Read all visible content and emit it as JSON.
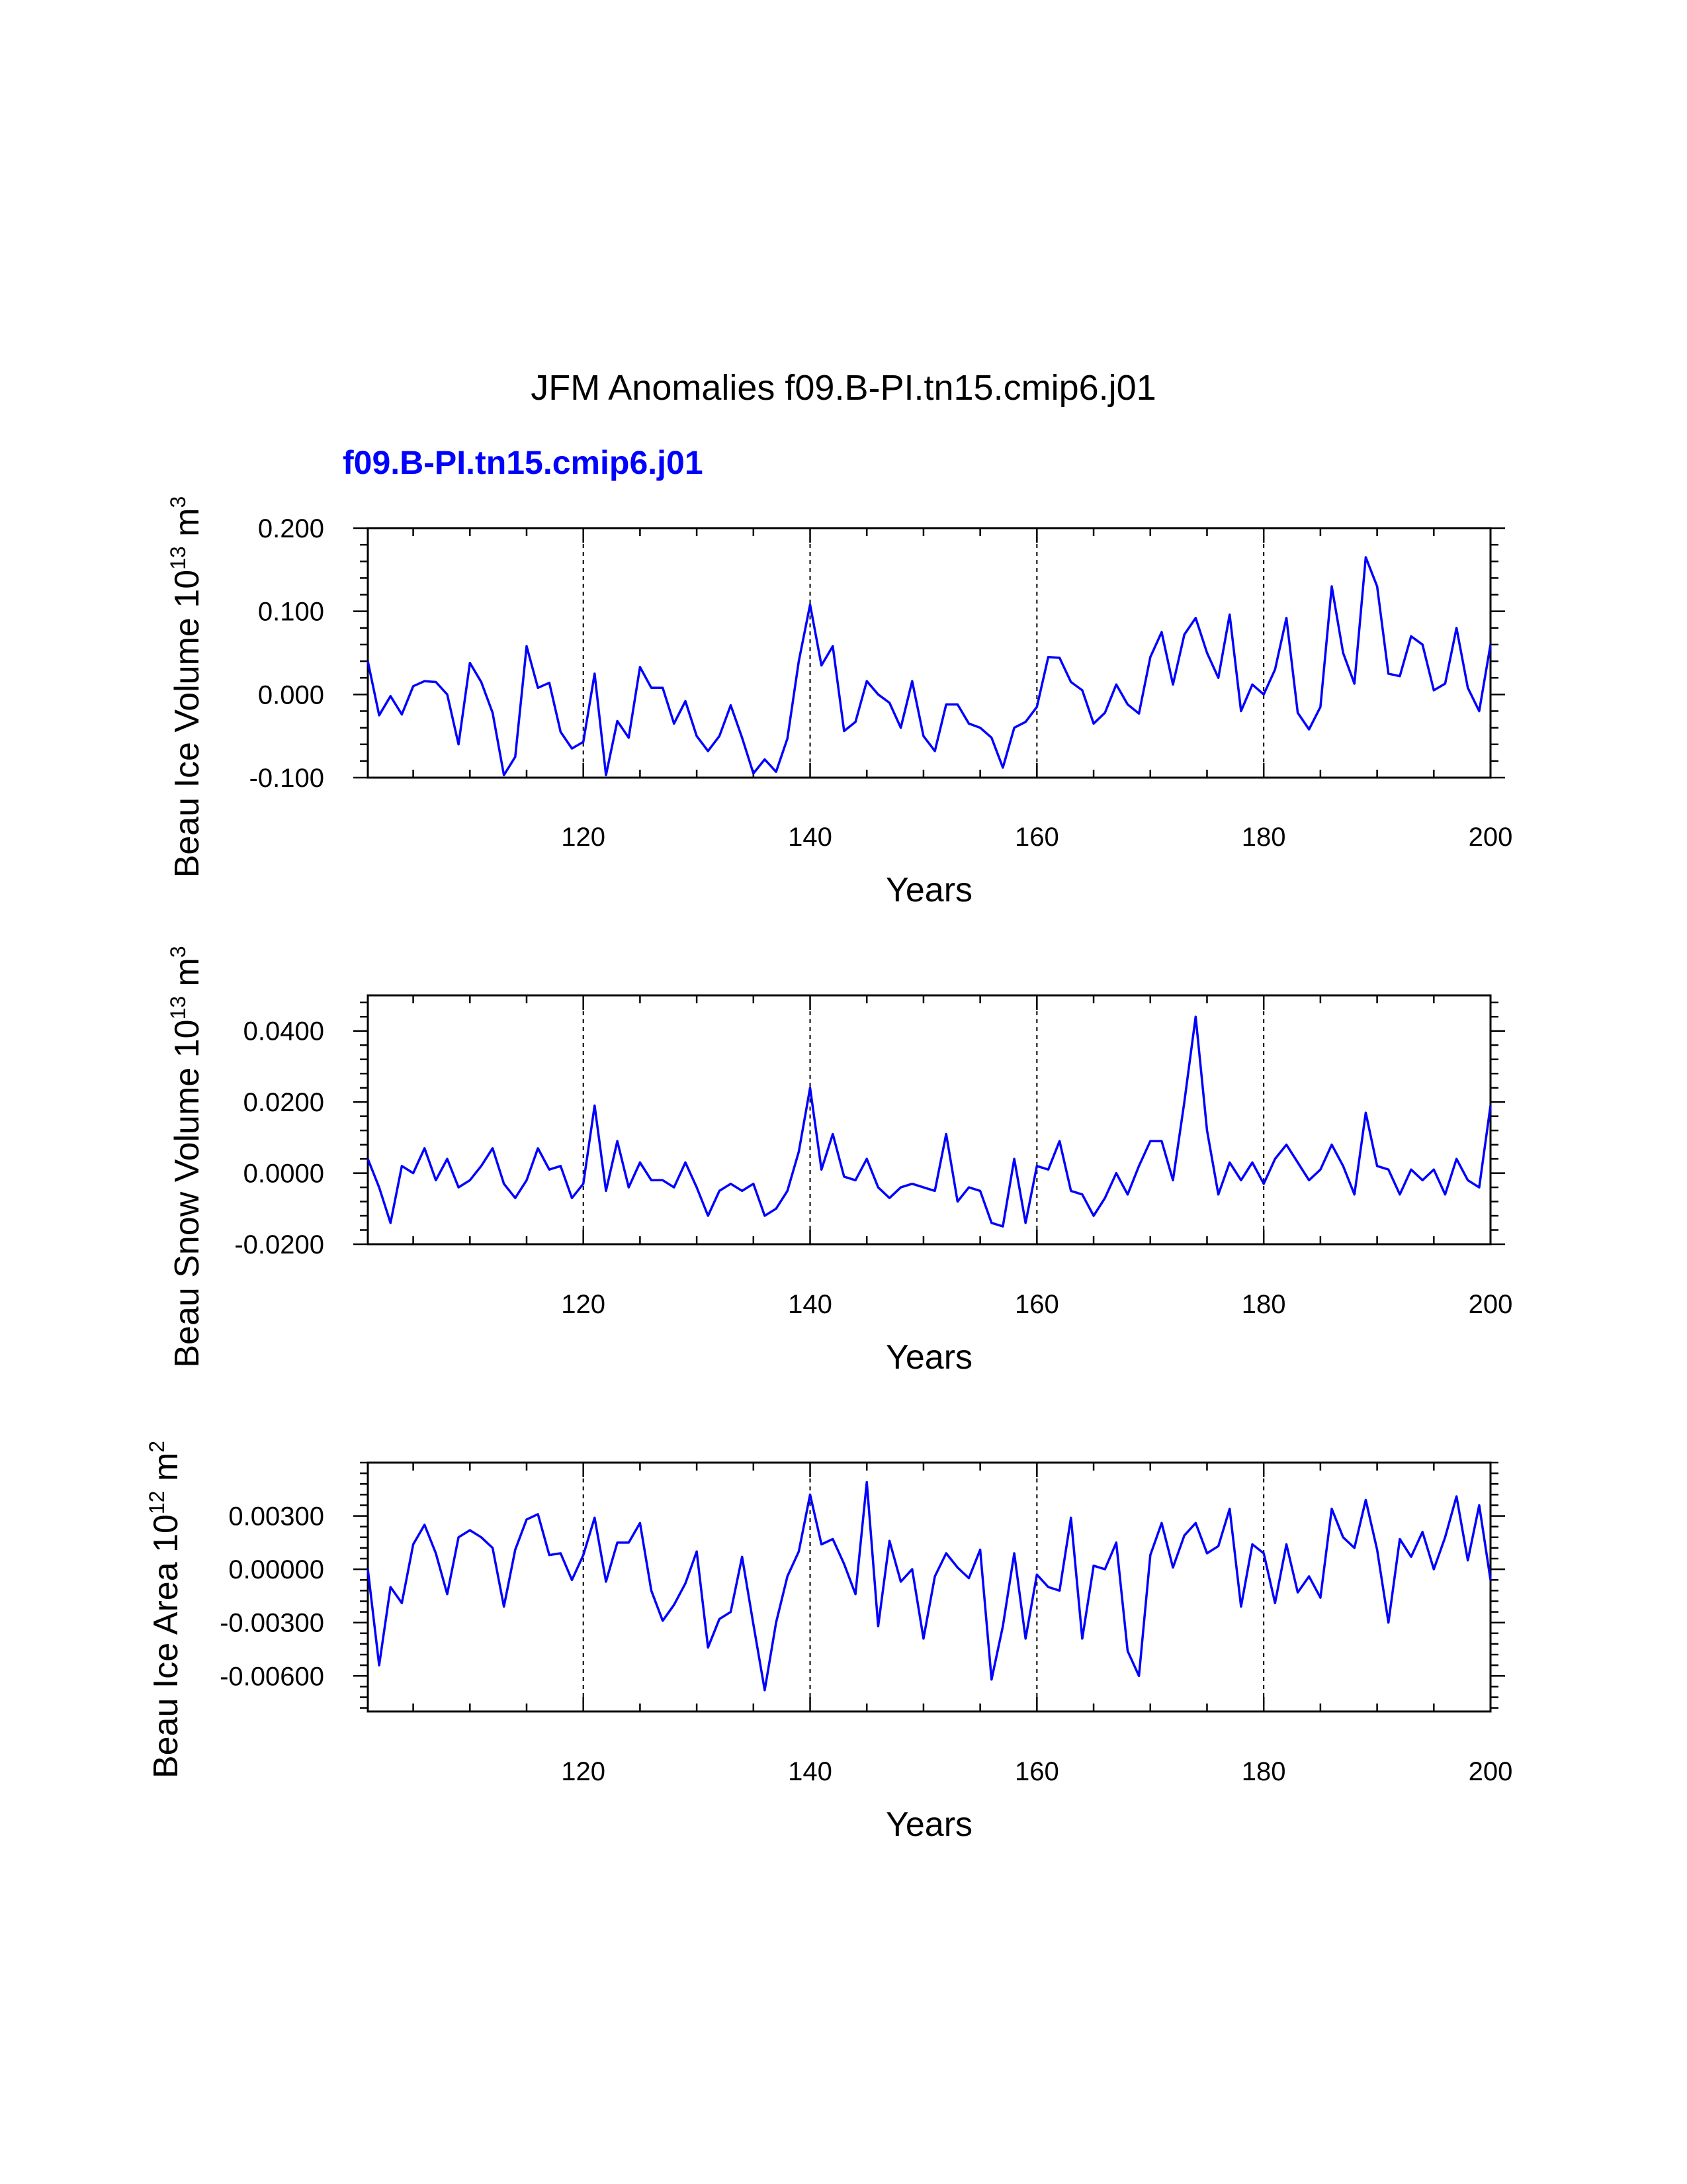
{
  "title": "JFM Anomalies f09.B-PI.tn15.cmip6.j01",
  "subtitle": "f09.B-PI.tn15.cmip6.j01",
  "colors": {
    "series": "#0000ff",
    "axis": "#000000",
    "subtitle": "#0000ff"
  },
  "chart_data": [
    {
      "type": "line",
      "ylabel": {
        "prefix": "Beau Ice Volume 10",
        "exponent": "13",
        "unit": " m",
        "unit_exponent": "3"
      },
      "xlabel": "Years",
      "xlim": [
        101,
        200
      ],
      "ylim": [
        -0.1,
        0.2
      ],
      "yticks": [
        {
          "value": -0.1,
          "label": "-0.100"
        },
        {
          "value": 0.0,
          "label": "0.000"
        },
        {
          "value": 0.1,
          "label": "0.100"
        },
        {
          "value": 0.2,
          "label": "0.200"
        }
      ],
      "xticks": [
        {
          "value": 120,
          "label": "120"
        },
        {
          "value": 140,
          "label": "140"
        },
        {
          "value": 160,
          "label": "160"
        },
        {
          "value": 180,
          "label": "180"
        },
        {
          "value": 200,
          "label": "200"
        }
      ],
      "gridlines_x": [
        120,
        140,
        160,
        180
      ],
      "series": [
        {
          "name": "f09.B-PI.tn15.cmip6.j01",
          "x_start": 101,
          "values": [
            0.04,
            -0.025,
            -0.002,
            -0.024,
            0.01,
            0.016,
            0.015,
            0.0,
            -0.06,
            0.038,
            0.015,
            -0.022,
            -0.097,
            -0.075,
            0.058,
            0.008,
            0.014,
            -0.045,
            -0.065,
            -0.057,
            0.025,
            -0.097,
            -0.032,
            -0.052,
            0.033,
            0.008,
            0.008,
            -0.035,
            -0.008,
            -0.05,
            -0.068,
            -0.05,
            -0.013,
            -0.052,
            -0.095,
            -0.078,
            -0.093,
            -0.053,
            0.04,
            0.108,
            0.035,
            0.058,
            -0.044,
            -0.033,
            0.016,
            0.0,
            -0.01,
            -0.04,
            0.016,
            -0.05,
            -0.068,
            -0.012,
            -0.012,
            -0.035,
            -0.04,
            -0.052,
            -0.088,
            -0.04,
            -0.033,
            -0.015,
            0.045,
            0.044,
            0.015,
            0.005,
            -0.035,
            -0.022,
            0.012,
            -0.012,
            -0.023,
            0.045,
            0.075,
            0.012,
            0.072,
            0.092,
            0.05,
            0.02,
            0.096,
            -0.02,
            0.012,
            0.0,
            0.03,
            0.092,
            -0.022,
            -0.042,
            -0.015,
            0.13,
            0.05,
            0.013,
            0.165,
            0.13,
            0.025,
            0.022,
            0.07,
            0.06,
            0.005,
            0.013,
            0.08,
            0.008,
            -0.02,
            0.06
          ]
        }
      ]
    },
    {
      "type": "line",
      "ylabel": {
        "prefix": "Beau Snow Volume 10",
        "exponent": "13",
        "unit": " m",
        "unit_exponent": "3"
      },
      "xlabel": "Years",
      "xlim": [
        101,
        200
      ],
      "ylim": [
        -0.02,
        0.05
      ],
      "yticks": [
        {
          "value": -0.02,
          "label": "-0.0200"
        },
        {
          "value": 0.0,
          "label": "0.0000"
        },
        {
          "value": 0.02,
          "label": "0.0200"
        },
        {
          "value": 0.04,
          "label": "0.0400"
        }
      ],
      "xticks": [
        {
          "value": 120,
          "label": "120"
        },
        {
          "value": 140,
          "label": "140"
        },
        {
          "value": 160,
          "label": "160"
        },
        {
          "value": 180,
          "label": "180"
        },
        {
          "value": 200,
          "label": "200"
        }
      ],
      "gridlines_x": [
        120,
        140,
        160,
        180
      ],
      "series": [
        {
          "name": "f09.B-PI.tn15.cmip6.j01",
          "x_start": 101,
          "values": [
            0.004,
            -0.004,
            -0.014,
            0.002,
            0.0,
            0.007,
            -0.002,
            0.004,
            -0.004,
            -0.002,
            0.002,
            0.007,
            -0.003,
            -0.007,
            -0.002,
            0.007,
            0.001,
            0.002,
            -0.007,
            -0.003,
            0.019,
            -0.005,
            0.009,
            -0.004,
            0.003,
            -0.002,
            -0.002,
            -0.004,
            0.003,
            -0.004,
            -0.012,
            -0.005,
            -0.003,
            -0.005,
            -0.003,
            -0.012,
            -0.01,
            -0.005,
            0.006,
            0.024,
            0.001,
            0.011,
            -0.001,
            -0.002,
            0.004,
            -0.004,
            -0.007,
            -0.004,
            -0.003,
            -0.004,
            -0.005,
            0.011,
            -0.008,
            -0.004,
            -0.005,
            -0.014,
            -0.015,
            0.004,
            -0.014,
            0.002,
            0.001,
            0.009,
            -0.005,
            -0.006,
            -0.012,
            -0.007,
            0.0,
            -0.006,
            0.002,
            0.009,
            0.009,
            -0.002,
            0.02,
            0.044,
            0.012,
            -0.006,
            0.003,
            -0.002,
            0.003,
            -0.003,
            0.004,
            0.008,
            0.003,
            -0.002,
            0.001,
            0.008,
            0.002,
            -0.006,
            0.017,
            0.002,
            0.001,
            -0.006,
            0.001,
            -0.002,
            0.001,
            -0.006,
            0.004,
            -0.002,
            -0.004,
            0.019
          ]
        }
      ]
    },
    {
      "type": "line",
      "ylabel": {
        "prefix": "Beau Ice Area 10",
        "exponent": "12",
        "unit": " m",
        "unit_exponent": "2"
      },
      "xlabel": "Years",
      "xlim": [
        101,
        200
      ],
      "ylim": [
        -0.008,
        0.006
      ],
      "yticks": [
        {
          "value": -0.006,
          "label": "-0.00600"
        },
        {
          "value": -0.003,
          "label": "-0.00300"
        },
        {
          "value": 0.0,
          "label": "0.00000"
        },
        {
          "value": 0.003,
          "label": "0.00300"
        }
      ],
      "xticks": [
        {
          "value": 120,
          "label": "120"
        },
        {
          "value": 140,
          "label": "140"
        },
        {
          "value": 160,
          "label": "160"
        },
        {
          "value": 180,
          "label": "180"
        },
        {
          "value": 200,
          "label": "200"
        }
      ],
      "gridlines_x": [
        120,
        140,
        160,
        180
      ],
      "series": [
        {
          "name": "f09.B-PI.tn15.cmip6.j01",
          "x_start": 101,
          "values": [
            0.0,
            -0.0054,
            -0.001,
            -0.0019,
            0.0014,
            0.0025,
            0.0009,
            -0.0014,
            0.0018,
            0.0022,
            0.0018,
            0.0012,
            -0.0021,
            0.0011,
            0.0028,
            0.0031,
            0.0008,
            0.0009,
            -0.0006,
            0.0008,
            0.0029,
            -0.0007,
            0.0015,
            0.0015,
            0.0026,
            -0.0012,
            -0.0029,
            -0.002,
            -0.0008,
            0.001,
            -0.0044,
            -0.0028,
            -0.0024,
            0.0007,
            -0.0031,
            -0.0068,
            -0.003,
            -0.0004,
            0.001,
            0.0042,
            0.0014,
            0.0017,
            0.0003,
            -0.0014,
            0.0049,
            -0.0032,
            0.0016,
            -0.0007,
            0.0,
            -0.0039,
            -0.0004,
            0.0009,
            0.0001,
            -0.0005,
            0.0011,
            -0.0062,
            -0.0032,
            0.0009,
            -0.0039,
            -0.0003,
            -0.001,
            -0.0012,
            0.0029,
            -0.0039,
            0.0002,
            0.0,
            0.0015,
            -0.0046,
            -0.006,
            0.0008,
            0.0026,
            0.0001,
            0.0019,
            0.0026,
            0.0009,
            0.0013,
            0.0034,
            -0.0021,
            0.0014,
            0.0009,
            -0.0019,
            0.0014,
            -0.0013,
            -0.0004,
            -0.0016,
            0.0034,
            0.0018,
            0.0012,
            0.0039,
            0.0011,
            -0.003,
            0.0017,
            0.0007,
            0.0021,
            0.0,
            0.0018,
            0.0041,
            0.0005,
            0.0036,
            -0.0006
          ]
        }
      ]
    }
  ]
}
